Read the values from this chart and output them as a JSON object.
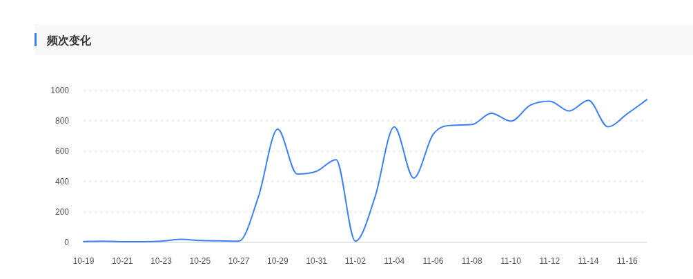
{
  "chart_data": {
    "type": "line",
    "title": "频次变化",
    "categories": [
      "10-19",
      null,
      "10-21",
      null,
      "10-23",
      null,
      "10-25",
      null,
      "10-27",
      null,
      "10-29",
      null,
      "10-31",
      null,
      "11-02",
      null,
      "11-04",
      null,
      "11-06",
      null,
      "11-08",
      null,
      "11-10",
      null,
      "11-12",
      null,
      "11-14",
      null,
      "11-16",
      null
    ],
    "series": [
      {
        "color": "#3b80f5",
        "values": [
          6,
          8,
          5,
          5,
          8,
          20,
          12,
          10,
          8,
          298,
          745,
          450,
          468,
          544,
          8,
          295,
          760,
          424,
          711,
          771,
          776,
          850,
          798,
          903,
          930,
          865,
          935,
          761,
          847,
          939
        ]
      }
    ],
    "ylim": [
      0,
      1000
    ],
    "yticks": [
      0,
      200,
      400,
      600,
      800,
      1000
    ],
    "grid": "y",
    "marker": "none",
    "line_style": "solid"
  }
}
